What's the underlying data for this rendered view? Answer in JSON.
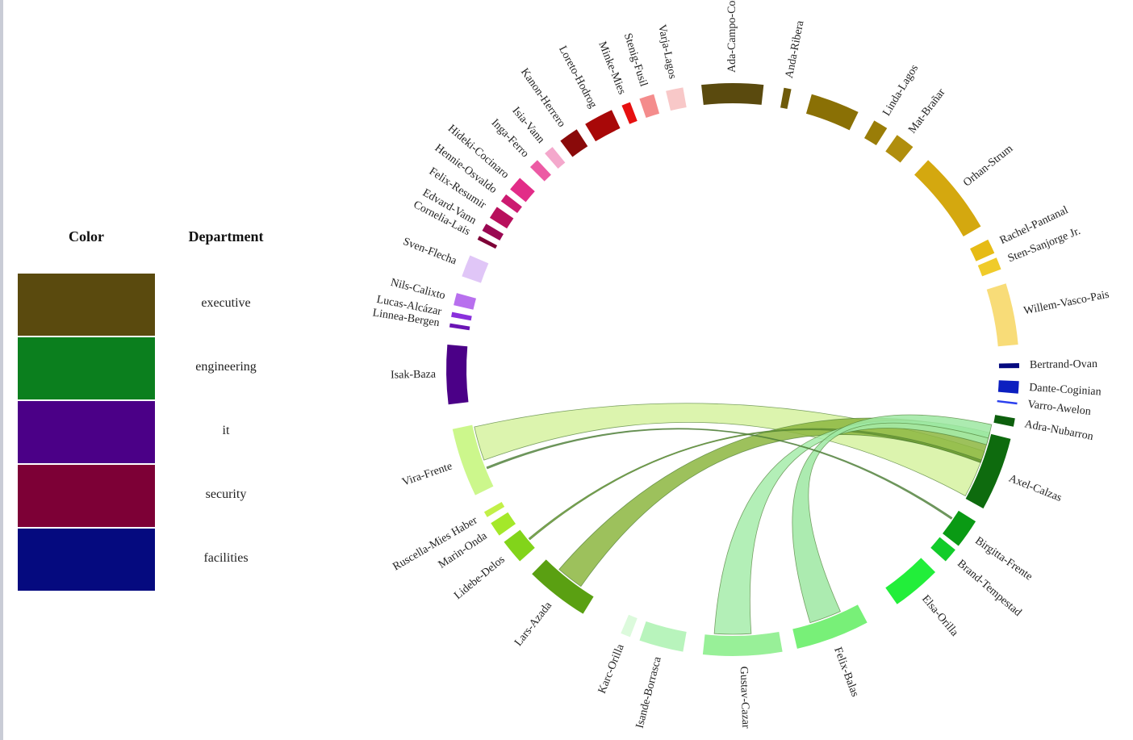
{
  "legend": {
    "color_header": "Color",
    "department_header": "Department",
    "items": [
      {
        "color": "#5a4a0e",
        "label": "executive"
      },
      {
        "color": "#0b7f1e",
        "label": "engineering"
      },
      {
        "color": "#4b0087",
        "label": "it"
      },
      {
        "color": "#7d0036",
        "label": "security"
      },
      {
        "color": "#050a7f",
        "label": "facilities"
      }
    ]
  },
  "nodes": [
    {
      "label": "Ada-Campo-Corrente",
      "color": "#5a4a0e"
    },
    {
      "label": "Anda-Ribera",
      "color": "#6e5a09"
    },
    {
      "label": "",
      "color": "#8a7005"
    },
    {
      "label": "Linda-Lagos",
      "color": "#9a7d08"
    },
    {
      "label": "Mat-Brañar",
      "color": "#b08e0e"
    },
    {
      "label": "Orhan-Strum",
      "color": "#d4a80f"
    },
    {
      "label": "Rachel-Pantanal",
      "color": "#e6bb15"
    },
    {
      "label": "Sten-Sanjorge Jr.",
      "color": "#f0cb2a"
    },
    {
      "label": "Willem-Vasco-Pais",
      "color": "#f8dc78"
    },
    {
      "label": "Bertrand-Ovan",
      "color": "#050a7f"
    },
    {
      "label": "Dante-Coginian",
      "color": "#0c1fc0"
    },
    {
      "label": "Varro-Awelon",
      "color": "#2a3fee"
    },
    {
      "label": "Adra-Nubarron",
      "color": "#0d5f0d"
    },
    {
      "label": "Axel-Calzas",
      "color": "#0e6b0e"
    },
    {
      "label": "Birgitta-Frente",
      "color": "#0a9a14"
    },
    {
      "label": "Brand-Tempestad",
      "color": "#12cc2a"
    },
    {
      "label": "Elsa-Orilla",
      "color": "#22ee3a"
    },
    {
      "label": "Felix-Balas",
      "color": "#78f078"
    },
    {
      "label": "Gustav-Cazar",
      "color": "#98f098"
    },
    {
      "label": "Isande-Borrasca",
      "color": "#b8f4bc"
    },
    {
      "label": "Karc-Orilla",
      "color": "#dcfadc"
    },
    {
      "label": "Lars-Azada",
      "color": "#5aa012"
    },
    {
      "label": "Lidebe-Delos",
      "color": "#82d41a"
    },
    {
      "label": "Marin-Onda",
      "color": "#a4e82a"
    },
    {
      "label": "Ruscella-Mies Haber",
      "color": "#c2f048"
    },
    {
      "label": "Vira-Frente",
      "color": "#ccf78c"
    },
    {
      "label": "Isak-Baza",
      "color": "#4b0087"
    },
    {
      "label": "Linnea-Bergen",
      "color": "#6a14b4"
    },
    {
      "label": "Lucas-Alcázar",
      "color": "#8a30dc"
    },
    {
      "label": "Nils-Calixto",
      "color": "#b870ee"
    },
    {
      "label": "Sven-Flecha",
      "color": "#e0c6f7"
    },
    {
      "label": "Cornelia-Lais",
      "color": "#7d0036"
    },
    {
      "label": "Edvard-Vann",
      "color": "#9a0852"
    },
    {
      "label": "Felix-Resumir",
      "color": "#b8105c"
    },
    {
      "label": "Hennie-Osvaldo",
      "color": "#cc1a70"
    },
    {
      "label": "Hideki-Cocinaro",
      "color": "#e22c88"
    },
    {
      "label": "Inga-Ferro",
      "color": "#ec5aa4"
    },
    {
      "label": "Isia-Vann",
      "color": "#f4a8cc"
    },
    {
      "label": "Kanon-Herrero",
      "color": "#8a0a0a"
    },
    {
      "label": "Loreto-Hodrog",
      "color": "#a80808"
    },
    {
      "label": "Minke-Mies",
      "color": "#e61010"
    },
    {
      "label": "Stenig-Fusil",
      "color": "#f48c8c"
    },
    {
      "label": "Varja-Lagos",
      "color": "#f8c8c8"
    }
  ],
  "links": [
    {
      "source": "Axel-Calzas",
      "target": "Vira-Frente",
      "color": "#d6f2a0"
    },
    {
      "source": "Axel-Calzas",
      "target": "Lars-Azada",
      "color": "#8cb640"
    },
    {
      "source": "Axel-Calzas",
      "target": "Marin-Onda",
      "color": "#6a9a32"
    },
    {
      "source": "Axel-Calzas",
      "target": "Gustav-Cazar",
      "color": "#a6ecaa"
    },
    {
      "source": "Axel-Calzas",
      "target": "Felix-Balas",
      "color": "#9ee7a2"
    },
    {
      "source": "Birgitta-Frente",
      "target": "Vira-Frente",
      "color": "#5a8a4a"
    }
  ]
}
